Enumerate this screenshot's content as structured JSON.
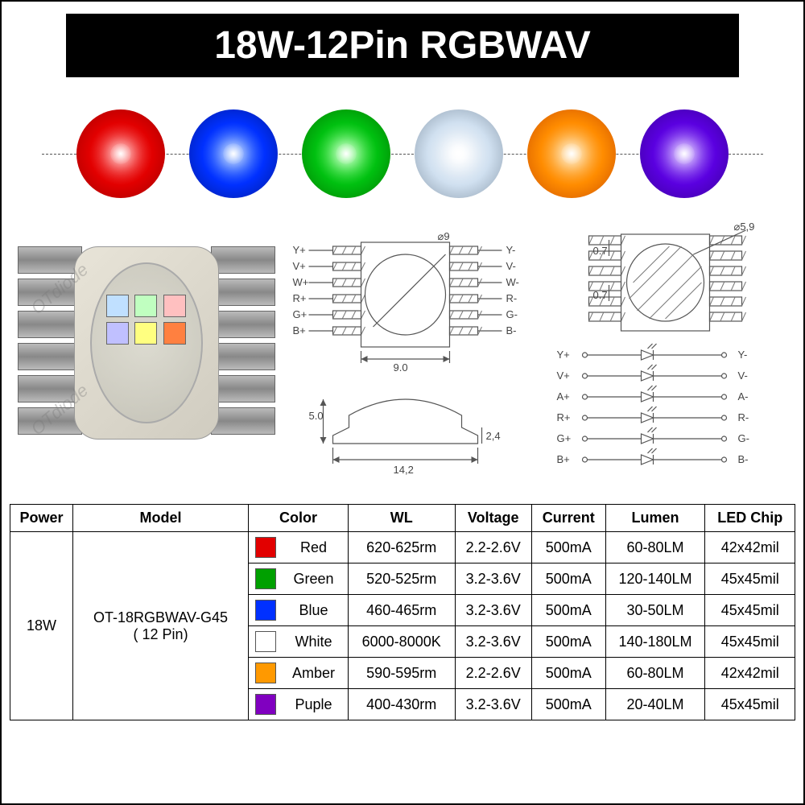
{
  "title": "18W-12Pin RGBWAV",
  "swatches": [
    {
      "name": "red",
      "bg": "radial-gradient(circle, #ff6a6a 0%, #e20000 50%, #a00000 100%)"
    },
    {
      "name": "blue",
      "bg": "radial-gradient(circle, #6aa0ff 0%, #0030ff 50%, #001a99 100%)"
    },
    {
      "name": "green",
      "bg": "radial-gradient(circle, #7aff7a 0%, #00c010 50%, #007a00 100%)"
    },
    {
      "name": "white",
      "bg": "radial-gradient(circle, #ffffff 0%, #d0e0f0 50%, #8899aa 100%)"
    },
    {
      "name": "amber",
      "bg": "radial-gradient(circle, #ffd080 0%, #ff8c00 50%, #cc5000 100%)"
    },
    {
      "name": "purple",
      "bg": "radial-gradient(circle, #b080ff 0%, #5a00e0 50%, #3a0099 100%)"
    }
  ],
  "photo": {
    "watermark": "OTdiode",
    "chips": [
      "#c0e0ff",
      "#c0ffc0",
      "#ffc0c0",
      "#c0c0ff",
      "#ffff80",
      "#ff8040"
    ]
  },
  "diagram": {
    "lens_dia": "⌀9",
    "body_w": "9.0",
    "body_h_side": "5.0",
    "total_w": "14,2",
    "lip_h": "2,4",
    "hole_dia": "⌀5,9",
    "pin_pitch": "0.7",
    "pins_left": [
      "Y+",
      "V+",
      "W+",
      "R+",
      "G+",
      "B+"
    ],
    "pins_right": [
      "Y-",
      "V-",
      "W-",
      "R-",
      "G-",
      "B-"
    ],
    "circuit_left": [
      "Y+",
      "V+",
      "A+",
      "R+",
      "G+",
      "B+"
    ],
    "circuit_right": [
      "Y-",
      "V-",
      "A-",
      "R-",
      "G-",
      "B-"
    ]
  },
  "table": {
    "headers": [
      "Power",
      "Model",
      "Color",
      "WL",
      "Voltage",
      "Current",
      "Lumen",
      "LED Chip"
    ],
    "power": "18W",
    "model_line1": "OT-18RGBWAV-G45",
    "model_line2": "( 12 Pin)",
    "rows": [
      {
        "swatch": "#e20000",
        "color": "Red",
        "wl": "620-625rm",
        "v": "2.2-2.6V",
        "i": "500mA",
        "lm": "60-80LM",
        "chip": "42x42mil"
      },
      {
        "swatch": "#00a000",
        "color": "Green",
        "wl": "520-525rm",
        "v": "3.2-3.6V",
        "i": "500mA",
        "lm": "120-140LM",
        "chip": "45x45mil"
      },
      {
        "swatch": "#0030ff",
        "color": "Blue",
        "wl": "460-465rm",
        "v": "3.2-3.6V",
        "i": "500mA",
        "lm": "30-50LM",
        "chip": "45x45mil"
      },
      {
        "swatch": "#ffffff",
        "color": "White",
        "wl": "6000-8000K",
        "v": "3.2-3.6V",
        "i": "500mA",
        "lm": "140-180LM",
        "chip": "45x45mil"
      },
      {
        "swatch": "#ff9900",
        "color": "Amber",
        "wl": "590-595rm",
        "v": "2.2-2.6V",
        "i": "500mA",
        "lm": "60-80LM",
        "chip": "42x42mil"
      },
      {
        "swatch": "#8000c0",
        "color": "Puple",
        "wl": "400-430rm",
        "v": "3.2-3.6V",
        "i": "500mA",
        "lm": "20-40LM",
        "chip": "45x45mil"
      }
    ]
  }
}
